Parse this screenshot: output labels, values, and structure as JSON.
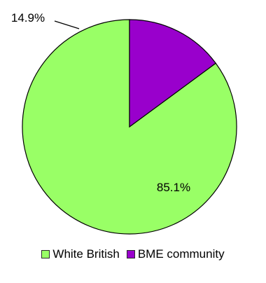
{
  "chart_data": {
    "type": "pie",
    "slices": [
      {
        "name": "White British",
        "value": 85.1,
        "label": "85.1%",
        "color": "#99ff66"
      },
      {
        "name": "BME community",
        "value": 14.9,
        "label": "14.9%",
        "color": "#9900cc"
      }
    ],
    "start": "12 o'clock",
    "direction": "clockwise",
    "legend": "bottom",
    "title": ""
  }
}
